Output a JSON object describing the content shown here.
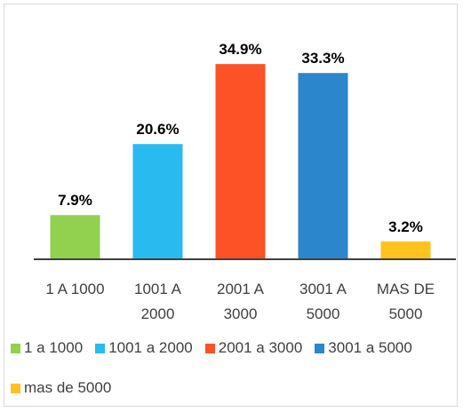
{
  "chart_data": {
    "type": "bar",
    "categories": [
      "1 A 1000",
      "1001 A 2000",
      "2001 A 3000",
      "3001 A 5000",
      "MAS DE 5000"
    ],
    "series": [
      {
        "name": "1 a 1000",
        "color": "#92d050",
        "values": [
          7.9,
          null,
          null,
          null,
          null
        ],
        "value_labels": [
          "7.9%",
          null,
          null,
          null,
          null
        ]
      },
      {
        "name": "1001 a 2000",
        "color": "#29bbef",
        "values": [
          null,
          20.6,
          null,
          null,
          null
        ],
        "value_labels": [
          null,
          "20.6%",
          null,
          null,
          null
        ]
      },
      {
        "name": "2001 a 3000",
        "color": "#fc5226",
        "values": [
          null,
          null,
          34.9,
          null,
          null
        ],
        "value_labels": [
          null,
          null,
          "34.9%",
          null,
          null
        ]
      },
      {
        "name": "3001 a 5000",
        "color": "#2b86cb",
        "values": [
          null,
          null,
          null,
          33.3,
          null
        ],
        "value_labels": [
          null,
          null,
          null,
          "33.3%",
          null
        ]
      },
      {
        "name": "mas de 5000",
        "color": "#ffc21f",
        "values": [
          null,
          null,
          null,
          null,
          3.2
        ],
        "value_labels": [
          null,
          null,
          null,
          null,
          "3.2%"
        ]
      }
    ],
    "ylim": [
      0,
      40
    ],
    "legend": "bottom"
  }
}
